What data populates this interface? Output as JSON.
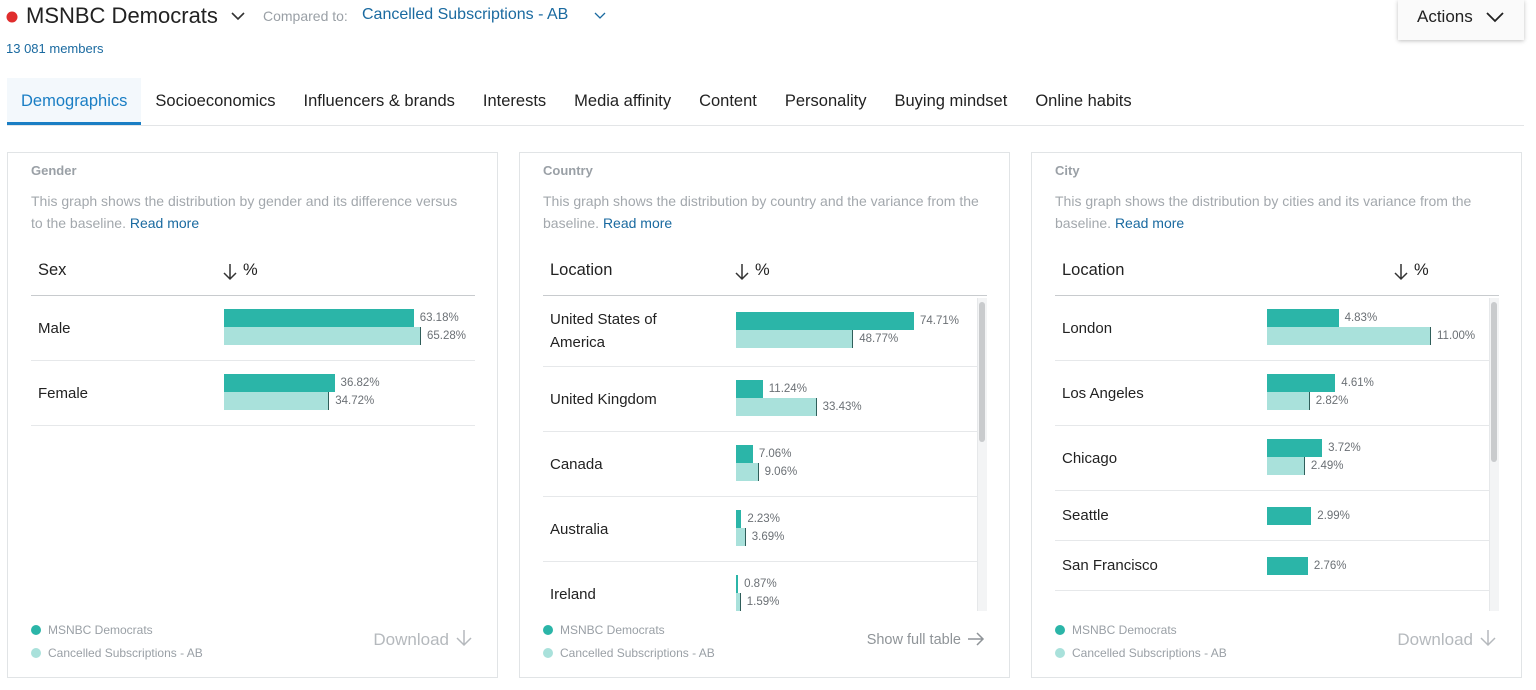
{
  "header": {
    "title": "MSNBC Democrats",
    "compared_label": "Compared to:",
    "compared_value": "Cancelled Subscriptions - AB",
    "members": "13 081 members",
    "actions": "Actions"
  },
  "tabs": [
    "Demographics",
    "Socioeconomics",
    "Influencers & brands",
    "Interests",
    "Media affinity",
    "Content",
    "Personality",
    "Buying mindset",
    "Online habits"
  ],
  "colors": {
    "primary": "#2bb5a8",
    "baseline": "#a9e1db"
  },
  "panels": [
    {
      "title": "Gender",
      "description": "This graph shows the distribution by gender and its difference versus to the baseline.",
      "read_more": "Read more",
      "columns": [
        "Sex",
        "%"
      ],
      "rows": [
        {
          "label": "Male",
          "value": 63.18,
          "value_label": "63.18%",
          "baseline": 65.28,
          "baseline_label": "65.28%"
        },
        {
          "label": "Female",
          "value": 36.82,
          "value_label": "36.82%",
          "baseline": 34.72,
          "baseline_label": "34.72%"
        }
      ],
      "legend": [
        "MSNBC Democrats",
        "Cancelled Subscriptions - AB"
      ],
      "footer_action": "Download"
    },
    {
      "title": "Country",
      "description": "This graph shows the distribution by country and the variance from the baseline.",
      "read_more": "Read more",
      "columns": [
        "Location",
        "%"
      ],
      "rows": [
        {
          "label": "United States of America",
          "value": 74.71,
          "value_label": "74.71%",
          "baseline": 48.77,
          "baseline_label": "48.77%"
        },
        {
          "label": "United Kingdom",
          "value": 11.24,
          "value_label": "11.24%",
          "baseline": 33.43,
          "baseline_label": "33.43%"
        },
        {
          "label": "Canada",
          "value": 7.06,
          "value_label": "7.06%",
          "baseline": 9.06,
          "baseline_label": "9.06%"
        },
        {
          "label": "Australia",
          "value": 2.23,
          "value_label": "2.23%",
          "baseline": 3.69,
          "baseline_label": "3.69%"
        },
        {
          "label": "Ireland",
          "value": 0.87,
          "value_label": "0.87%",
          "baseline": 1.59,
          "baseline_label": "1.59%"
        }
      ],
      "legend": [
        "MSNBC Democrats",
        "Cancelled Subscriptions - AB"
      ],
      "footer_action": "Show full table"
    },
    {
      "title": "City",
      "description": "This graph shows the distribution by cities and its variance from the baseline.",
      "read_more": "Read more",
      "columns": [
        "Location",
        "%"
      ],
      "rows": [
        {
          "label": "London",
          "value": 4.83,
          "value_label": "4.83%",
          "baseline": 11.0,
          "baseline_label": "11.00%"
        },
        {
          "label": "Los Angeles",
          "value": 4.61,
          "value_label": "4.61%",
          "baseline": 2.82,
          "baseline_label": "2.82%"
        },
        {
          "label": "Chicago",
          "value": 3.72,
          "value_label": "3.72%",
          "baseline": 2.49,
          "baseline_label": "2.49%"
        },
        {
          "label": "Seattle",
          "value": 2.99,
          "value_label": "2.99%"
        },
        {
          "label": "San Francisco",
          "value": 2.76,
          "value_label": "2.76%"
        }
      ],
      "legend": [
        "MSNBC Democrats",
        "Cancelled Subscriptions - AB"
      ],
      "footer_action": "Download"
    }
  ]
}
